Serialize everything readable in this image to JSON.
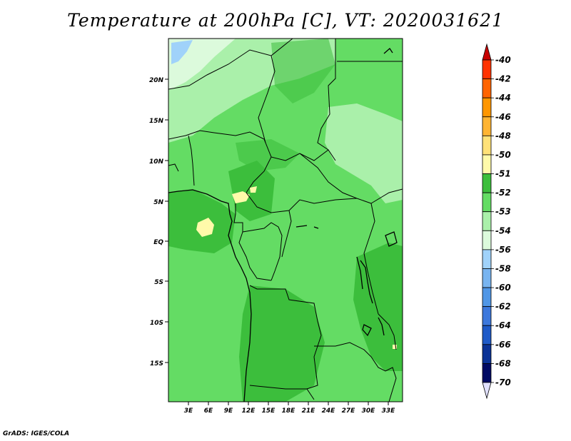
{
  "title": "Temperature at 200hPa [C], VT: 2020031621",
  "credit": "GrADS: IGES/COLA",
  "map": {
    "lat_labels": [
      "20N",
      "15N",
      "10N",
      "5N",
      "EQ",
      "5S",
      "10S",
      "15S"
    ],
    "lon_labels": [
      "3E",
      "6E",
      "9E",
      "12E",
      "15E",
      "18E",
      "21E",
      "24E",
      "27E",
      "30E",
      "33E"
    ]
  },
  "colorbar": {
    "labels": [
      "-40",
      "-42",
      "-44",
      "-46",
      "-48",
      "-50",
      "-51",
      "-52",
      "-53",
      "-54",
      "-56",
      "-58",
      "-60",
      "-62",
      "-64",
      "-66",
      "-68",
      "-70"
    ],
    "colors": [
      "#c80000",
      "#ff3200",
      "#ff6400",
      "#ff9600",
      "#ffb432",
      "#ffe178",
      "#fffaaa",
      "#3cbe3c",
      "#64dc64",
      "#aaf0aa",
      "#dcfadc",
      "#a0d2fa",
      "#78b4f0",
      "#5096e6",
      "#3c78dc",
      "#1e5ac8",
      "#0a3296",
      "#000a64",
      "#e1e1ff"
    ]
  }
}
